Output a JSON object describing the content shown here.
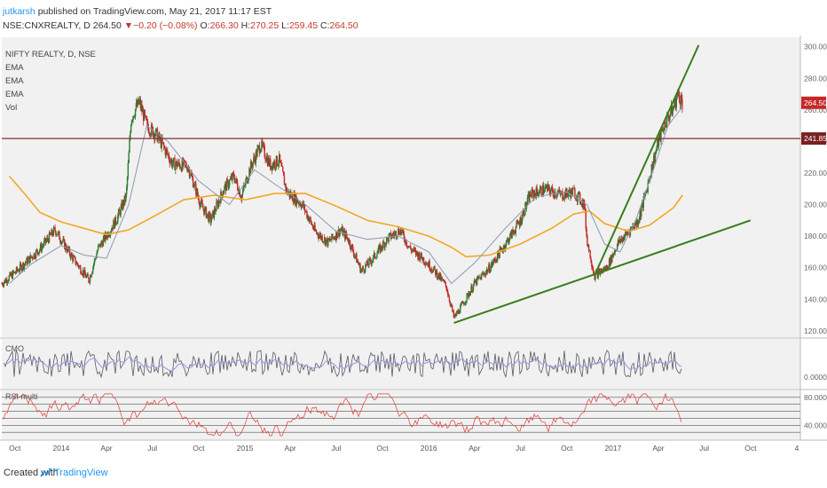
{
  "header": {
    "author": "jutkarsh",
    "published": "published on TradingView.com, May 21, 2017 11:17 EST",
    "symbol": "NSE:CNXREALTY, D",
    "price": "264.50",
    "change": "▼−0.20 (−0.08%)",
    "o_label": "O:",
    "o_value": "266.30",
    "h_label": "H:",
    "h_value": "270.25",
    "l_label": "L:",
    "l_value": "259.45",
    "c_label": "C:",
    "c_value": "264.50"
  },
  "legend": [
    "NIFTY REALTY, D, NSE",
    "EMA",
    "EMA",
    "EMA",
    "Vol"
  ],
  "footer": {
    "created": "Created with",
    "brand": "TradingView"
  },
  "colors": {
    "up": "#2e7d32",
    "down": "#c62828",
    "ema_slow": "#f5a623",
    "ema_fast": "#8d99b0",
    "trend": "#3a7d1a",
    "hline": "#8b2d2d",
    "rsi": "#e53935",
    "cmo": "#555a66",
    "cmo_sig": "#9a93d6"
  },
  "chart_data": {
    "type": "line",
    "title": "NIFTY REALTY, D, NSE",
    "x_ticks": [
      "Oct",
      "2014",
      "Apr",
      "Jul",
      "Oct",
      "2015",
      "Apr",
      "Jul",
      "Oct",
      "2016",
      "Apr",
      "Jul",
      "Oct",
      "2017",
      "Apr",
      "Jul",
      "Oct",
      "4"
    ],
    "y_ticks": [
      120,
      140,
      160,
      180,
      200,
      220,
      240,
      260,
      280,
      300
    ],
    "ylim": [
      116,
      306
    ],
    "price_label": 264.5,
    "hline_value": 241.85,
    "hline_label": "241.85",
    "price_label_text": "264.50",
    "series": [
      {
        "name": "EMA",
        "x": [
          "2013-09-20",
          "2013-10-20",
          "2013-11-20",
          "2014-01-01",
          "2014-02-15",
          "2014-04-01",
          "2014-05-15",
          "2014-07-01",
          "2014-09-01",
          "2014-11-01",
          "2015-01-01",
          "2015-03-01",
          "2015-05-01",
          "2015-07-01",
          "2015-09-01",
          "2015-11-01",
          "2016-01-01",
          "2016-02-15",
          "2016-03-15",
          "2016-05-01",
          "2016-07-01",
          "2016-09-01",
          "2016-10-15",
          "2016-11-15",
          "2016-12-15",
          "2017-02-01",
          "2017-03-15",
          "2017-05-01",
          "2017-05-19"
        ],
        "values": [
          218,
          207,
          195,
          189,
          185,
          181,
          184,
          192,
          203,
          206,
          203,
          207,
          207,
          199,
          190,
          186,
          180,
          173,
          167,
          168,
          175,
          185,
          194,
          196,
          188,
          183,
          187,
          198,
          206
        ]
      },
      {
        "name": "EMA",
        "x": [
          "2013-09-20",
          "2013-11-01",
          "2014-01-01",
          "2014-02-15",
          "2014-04-01",
          "2014-05-15",
          "2014-06-20",
          "2014-08-01",
          "2014-10-01",
          "2014-12-01",
          "2015-01-20",
          "2015-03-01",
          "2015-05-01",
          "2015-07-01",
          "2015-09-01",
          "2015-11-01",
          "2016-01-01",
          "2016-02-15",
          "2016-04-01",
          "2016-06-01",
          "2016-08-01",
          "2016-10-01",
          "2016-11-10",
          "2016-12-15",
          "2017-01-15",
          "2017-02-15",
          "2017-03-20",
          "2017-04-20",
          "2017-05-19"
        ],
        "values": [
          150,
          162,
          174,
          168,
          166,
          200,
          250,
          240,
          215,
          200,
          222,
          213,
          200,
          183,
          178,
          180,
          170,
          150,
          163,
          185,
          205,
          208,
          200,
          175,
          170,
          190,
          220,
          250,
          262
        ]
      }
    ],
    "ohlc_description": "daily candlesticks",
    "trendlines": [
      {
        "from": [
          "2016-02-20",
          125
        ],
        "to": [
          "2017-10-01",
          190
        ]
      },
      {
        "from": [
          "2016-11-25",
          155
        ],
        "to": [
          "2017-06-20",
          301
        ]
      }
    ],
    "panel2": {
      "name": "CMO",
      "param": "",
      "y_ticks": [
        "0.0000"
      ]
    },
    "panel3": {
      "name": "RSI multi",
      "y_ticks": [
        "80.0000",
        "40.0000"
      ],
      "levels": [
        80,
        70,
        60,
        50,
        40,
        30
      ]
    }
  }
}
